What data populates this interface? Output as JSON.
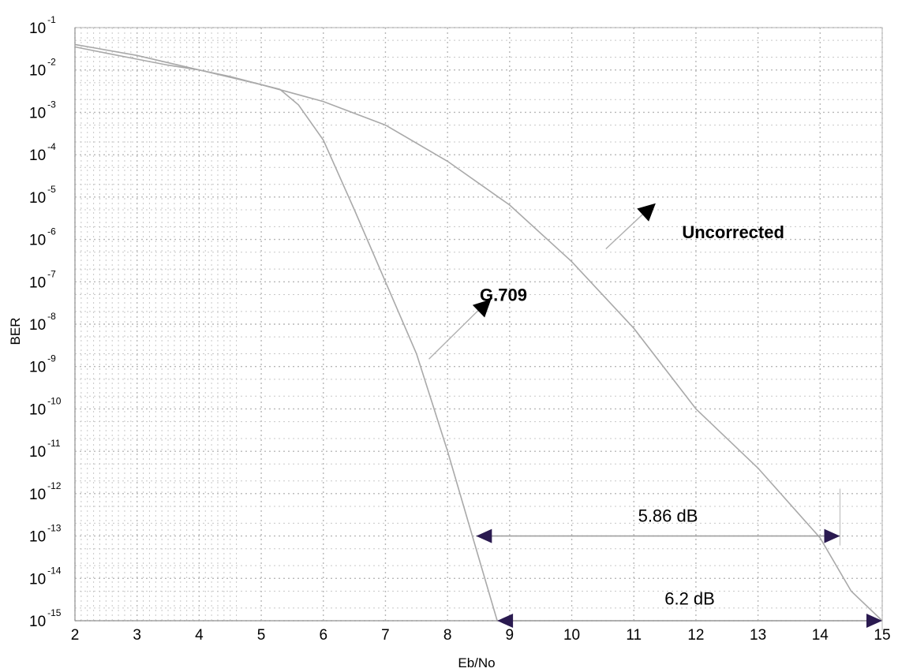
{
  "chart_data": {
    "type": "line",
    "title": "",
    "xlabel": "Eb/No",
    "ylabel": "BER",
    "x_scale": "linear",
    "y_scale": "log",
    "xlim": [
      2,
      15
    ],
    "ylim": [
      1e-15,
      0.1
    ],
    "x_ticks": [
      2,
      3,
      4,
      5,
      6,
      7,
      8,
      9,
      10,
      11,
      12,
      13,
      14,
      15
    ],
    "y_tick_exponents": [
      -1,
      -2,
      -3,
      -4,
      -5,
      -6,
      -7,
      -8,
      -9,
      -10,
      -11,
      -12,
      -13,
      -14,
      -15
    ],
    "y_tick_base": "10",
    "grid": true,
    "series": [
      {
        "name": "G.709",
        "x": [
          2,
          2.5,
          3,
          3.5,
          4,
          4.5,
          5,
          5.3,
          5.6,
          6,
          6.5,
          7,
          7.5,
          8,
          8.4,
          8.8
        ],
        "y": [
          0.035,
          0.025,
          0.018,
          0.013,
          0.01,
          0.007,
          0.0045,
          0.0035,
          0.0015,
          0.00022,
          5e-06,
          1e-07,
          2e-09,
          1e-11,
          1e-13,
          1e-15
        ]
      },
      {
        "name": "Uncorrected",
        "x": [
          2,
          3,
          4,
          5,
          6,
          7,
          8,
          9,
          10,
          11,
          12,
          13,
          14,
          14.5,
          15
        ],
        "y": [
          0.04,
          0.022,
          0.01,
          0.0045,
          0.0018,
          0.0005,
          7e-05,
          6.5e-06,
          3e-07,
          8e-09,
          1e-10,
          4e-12,
          9e-14,
          5e-15,
          1e-15
        ]
      }
    ],
    "annotations": [
      {
        "text": "Uncorrected",
        "x": 12.6,
        "y": 1.5e-06,
        "arrow_tip": [
          11.25,
          5.5e-06
        ],
        "leader_end": [
          10.55,
          6e-07
        ]
      },
      {
        "text": "G.709",
        "x": 8.9,
        "y": 5e-08,
        "arrow_tip": [
          8.6,
          3e-08
        ],
        "leader_end": [
          7.7,
          1.5e-09
        ]
      },
      {
        "text": "5.86 dB",
        "x": 11.55,
        "y": 2e-13,
        "from": [
          8.46,
          1e-13
        ],
        "to": [
          14.32,
          1e-13
        ]
      },
      {
        "text": "6.2 dB",
        "x": 11.9,
        "y": 2.2e-15,
        "from": [
          8.8,
          1e-15
        ],
        "to": [
          15,
          1e-15
        ]
      }
    ]
  }
}
